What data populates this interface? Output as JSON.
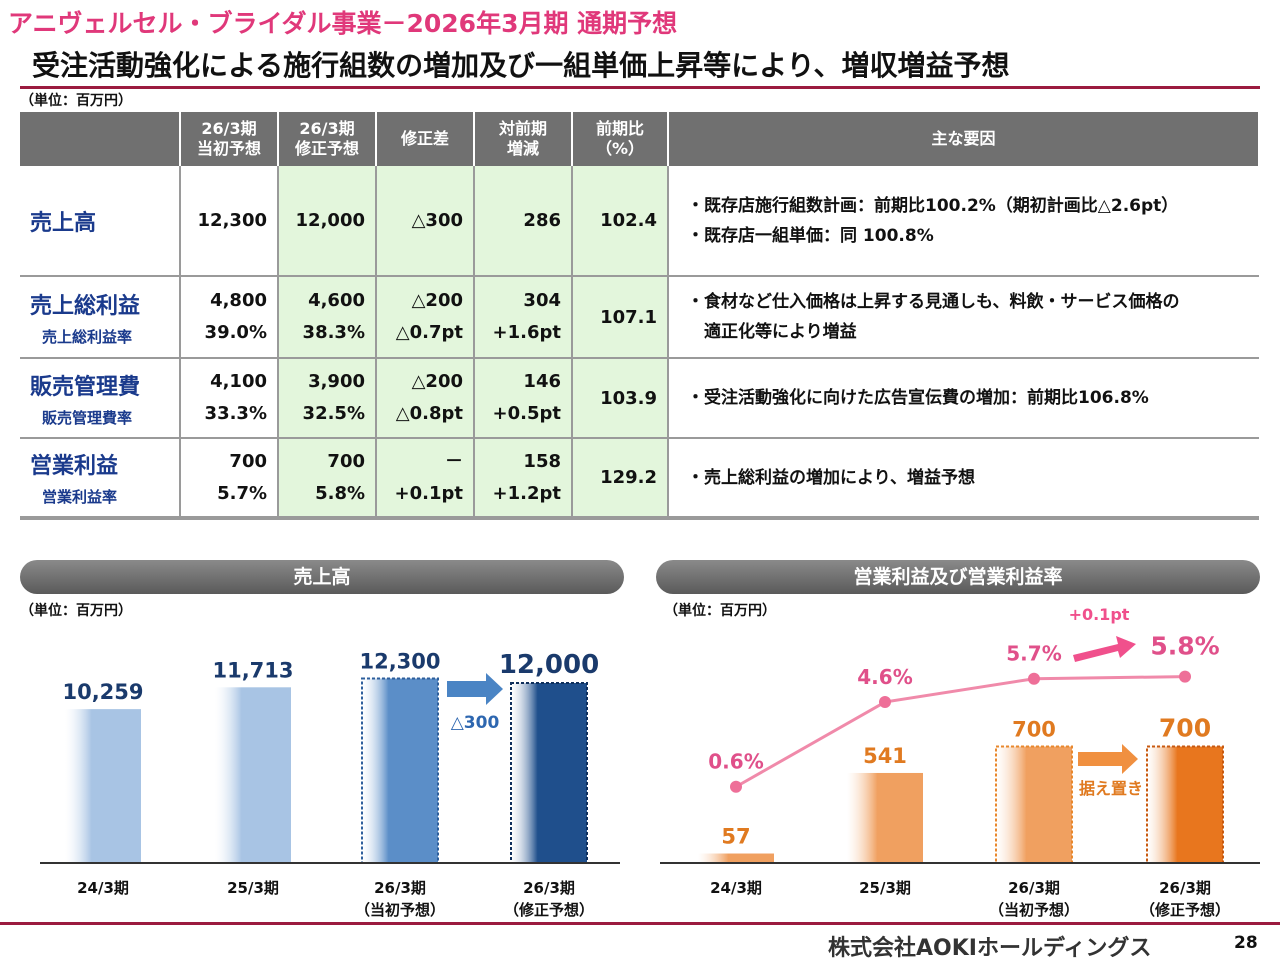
{
  "header": {
    "subtitle": "アニヴェルセル・ブライダル事業－2026年3月期 通期予想",
    "title": "受注活動強化による施行組数の増加及び一組単価上昇等により、増収増益予想",
    "unit": "（単位：百万円）"
  },
  "table": {
    "headers": {
      "initial": [
        "26/3期",
        "当初予想"
      ],
      "revised": [
        "26/3期",
        "修正予想"
      ],
      "diff": "修正差",
      "yoy": [
        "対前期",
        "増減"
      ],
      "ratio": [
        "前期比",
        "（%）"
      ],
      "factors": "主な要因"
    },
    "rows": {
      "sales": {
        "label": "売上高",
        "initial": "12,300",
        "revised": "12,000",
        "diff": "△300",
        "yoy": "286",
        "ratio": "102.4",
        "notes": [
          "・既存店施行組数計画：前期比100.2%（期初計画比△2.6pt）",
          "・既存店一組単価：同 100.8%"
        ]
      },
      "gross": {
        "label": "売上総利益",
        "sublabel": "売上総利益率",
        "initial": "4,800",
        "initial_pct": "39.0%",
        "revised": "4,600",
        "revised_pct": "38.3%",
        "diff": "△200",
        "diff_pct": "△0.7pt",
        "yoy": "304",
        "yoy_pct": "+1.6pt",
        "ratio": "107.1",
        "notes": [
          "・食材など仕入価格は上昇する見通しも、料飲・サービス価格の",
          "　適正化等により増益"
        ]
      },
      "sga": {
        "label": "販売管理費",
        "sublabel": "販売管理費率",
        "initial": "4,100",
        "initial_pct": "33.3%",
        "revised": "3,900",
        "revised_pct": "32.5%",
        "diff": "△200",
        "diff_pct": "△0.8pt",
        "yoy": "146",
        "yoy_pct": "+0.5pt",
        "ratio": "103.9",
        "notes": [
          "・受注活動強化に向けた広告宣伝費の増加：前期比106.8%"
        ]
      },
      "op": {
        "label": "営業利益",
        "sublabel": "営業利益率",
        "initial": "700",
        "initial_pct": "5.7%",
        "revised": "700",
        "revised_pct": "5.8%",
        "diff": "－",
        "diff_pct": "+0.1pt",
        "yoy": "158",
        "yoy_pct": "+1.2pt",
        "ratio": "129.2",
        "notes": [
          "・売上総利益の増加により、増益予想"
        ]
      }
    }
  },
  "left_panel": {
    "banner": "売上高",
    "unit": "（単位：百万円）"
  },
  "right_panel": {
    "banner": "営業利益及び営業利益率",
    "unit": "（単位：百万円）"
  },
  "chart_data": [
    {
      "type": "bar",
      "title": "売上高",
      "categories": [
        "24/3期",
        "25/3期",
        "26/3期（当初予想）",
        "26/3期（修正予想）"
      ],
      "category_lines": [
        [
          "24/3期"
        ],
        [
          "25/3期"
        ],
        [
          "26/3期",
          "（当初予想）"
        ],
        [
          "26/3期",
          "（修正予想）"
        ]
      ],
      "values": [
        10259,
        11713,
        12300,
        12000
      ],
      "value_labels": [
        "10,259",
        "11,713",
        "12,300",
        "12,000"
      ],
      "ylim": [
        0,
        14000
      ],
      "annotations": [
        "△300"
      ],
      "colors": [
        "#a8c4e4",
        "#a8c4e4",
        "#5b8ec8",
        "#1f4f8c"
      ],
      "label_color": "#1a3a6c"
    },
    {
      "type": "bar+line",
      "title": "営業利益及び営業利益率",
      "categories": [
        "24/3期",
        "25/3期",
        "26/3期（当初予想）",
        "26/3期（修正予想）"
      ],
      "category_lines": [
        [
          "24/3期"
        ],
        [
          "25/3期"
        ],
        [
          "26/3期",
          "（当初予想）"
        ],
        [
          "26/3期",
          "（修正予想）"
        ]
      ],
      "series": [
        {
          "name": "営業利益",
          "type": "bar",
          "values": [
            57,
            541,
            700,
            700
          ],
          "labels": [
            "57",
            "541",
            "700",
            "700"
          ]
        },
        {
          "name": "営業利益率",
          "type": "line",
          "values": [
            0.6,
            4.6,
            5.7,
            5.8
          ],
          "labels": [
            "0.6%",
            "4.6%",
            "5.7%",
            "5.8%"
          ]
        }
      ],
      "bar_ylim": [
        0,
        1400
      ],
      "line_ylim": [
        -3,
        8
      ],
      "annotations": [
        "+0.1pt",
        "据え置き"
      ],
      "bar_color": "#f0a060",
      "bar_color_dark": "#e8761e",
      "line_color": "#f08aaa",
      "value_color": "#e07a20",
      "line_label_color": "#e0508a"
    }
  ],
  "footer": {
    "company": "株式会社AOKIホールディングス",
    "page": "28"
  }
}
